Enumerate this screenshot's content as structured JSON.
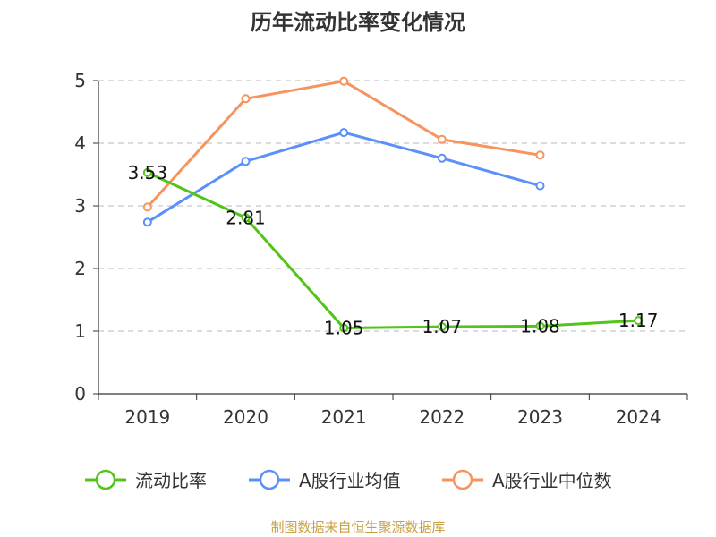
{
  "chart_data": {
    "type": "line",
    "title": "历年流动比率变化情况",
    "categories": [
      "2019",
      "2020",
      "2021",
      "2022",
      "2023",
      "2024"
    ],
    "ylim": [
      0,
      5
    ],
    "yticks": [
      0,
      1,
      2,
      3,
      4,
      5
    ],
    "grid": true,
    "legend_position": "bottom",
    "series": [
      {
        "name": "流动比率",
        "color": "#52c41a",
        "values": [
          3.53,
          2.81,
          1.05,
          1.07,
          1.08,
          1.17
        ],
        "labels": [
          "3.53",
          "2.81",
          "1.05",
          "1.07",
          "1.08",
          "1.17"
        ]
      },
      {
        "name": "A股行业均值",
        "color": "#5b8ff9",
        "values": [
          2.74,
          3.71,
          4.17,
          3.76,
          3.32,
          null
        ]
      },
      {
        "name": "A股行业中位数",
        "color": "#f6935e",
        "values": [
          2.98,
          4.71,
          4.99,
          4.06,
          3.81,
          null
        ]
      }
    ]
  },
  "source_text": "制图数据来自恒生聚源数据库",
  "source_color": "#c8a045"
}
